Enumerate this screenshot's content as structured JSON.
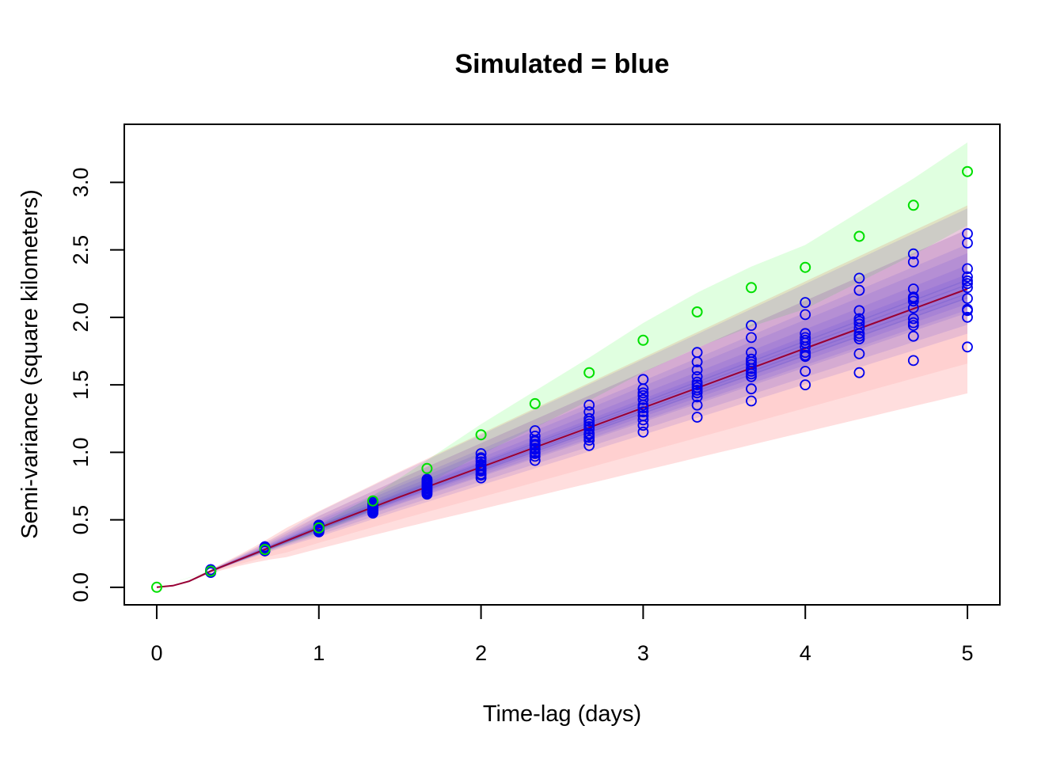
{
  "chart_data": {
    "type": "scatter",
    "title": "Simulated = blue",
    "xlabel": "Time-lag (days)",
    "ylabel": "Semi-variance (square kilometers)",
    "xlim": [
      -0.2,
      5.2
    ],
    "ylim": [
      -0.13,
      3.43
    ],
    "x_ticks": [
      0,
      1,
      2,
      3,
      4,
      5
    ],
    "y_ticks": [
      0.0,
      0.5,
      1.0,
      1.5,
      2.0,
      2.5,
      3.0
    ],
    "x_tick_labels": [
      "0",
      "1",
      "2",
      "3",
      "4",
      "5"
    ],
    "y_tick_labels": [
      "0.0",
      "0.5",
      "1.0",
      "1.5",
      "2.0",
      "2.5",
      "3.0"
    ],
    "grid": false,
    "colors": {
      "observed": "#00e000",
      "simulated": "#0000ee",
      "model_line": "#990033",
      "observed_band": "#00ff00",
      "model_band": "#ff6b6b",
      "simulated_band": "#4b33dd"
    },
    "lag_x": [
      0,
      0.333,
      0.667,
      1,
      1.333,
      1.667,
      2,
      2.333,
      2.667,
      3,
      3.333,
      3.667,
      4,
      4.333,
      4.667,
      5
    ],
    "observed": [
      0.0,
      0.12,
      0.28,
      0.44,
      0.64,
      0.88,
      1.13,
      1.36,
      1.59,
      1.83,
      2.04,
      2.22,
      2.37,
      2.6,
      2.83,
      3.08
    ],
    "simulated": [
      [
        0.12,
        0.12,
        0.13,
        0.12,
        0.13,
        0.11,
        0.12,
        0.13,
        0.12,
        0.12,
        0.13,
        0.12
      ],
      [
        0.27,
        0.29,
        0.28,
        0.3,
        0.27,
        0.28,
        0.29,
        0.28,
        0.3,
        0.27,
        0.29,
        0.28
      ],
      [
        0.42,
        0.44,
        0.46,
        0.43,
        0.45,
        0.41,
        0.44,
        0.46,
        0.43,
        0.42,
        0.45,
        0.44
      ],
      [
        0.55,
        0.58,
        0.6,
        0.63,
        0.56,
        0.59,
        0.61,
        0.57,
        0.62,
        0.58,
        0.6,
        0.57
      ],
      [
        0.69,
        0.72,
        0.75,
        0.78,
        0.8,
        0.71,
        0.74,
        0.77,
        0.73,
        0.76,
        0.79,
        0.7
      ],
      [
        0.81,
        0.84,
        0.87,
        0.9,
        0.93,
        0.96,
        0.99,
        0.83,
        0.86,
        0.91,
        0.88,
        0.95
      ],
      [
        0.94,
        0.97,
        1.0,
        1.03,
        1.06,
        1.09,
        1.12,
        1.16,
        0.99,
        1.05,
        1.02,
        1.08
      ],
      [
        1.05,
        1.09,
        1.13,
        1.17,
        1.21,
        1.25,
        1.3,
        1.35,
        1.11,
        1.19,
        1.23,
        1.14
      ],
      [
        1.15,
        1.2,
        1.27,
        1.33,
        1.39,
        1.42,
        1.47,
        1.54,
        1.24,
        1.3,
        1.35,
        1.44
      ],
      [
        1.26,
        1.35,
        1.41,
        1.44,
        1.48,
        1.52,
        1.56,
        1.61,
        1.67,
        1.74,
        1.46,
        1.5
      ],
      [
        1.38,
        1.47,
        1.56,
        1.58,
        1.62,
        1.65,
        1.69,
        1.74,
        1.85,
        1.94,
        1.6,
        1.67
      ],
      [
        1.5,
        1.6,
        1.71,
        1.74,
        1.78,
        1.81,
        1.85,
        1.88,
        2.02,
        2.11,
        1.72,
        1.83
      ],
      [
        1.59,
        1.73,
        1.84,
        1.86,
        1.92,
        1.97,
        1.99,
        2.05,
        2.2,
        2.29,
        1.88,
        1.95
      ],
      [
        1.68,
        1.86,
        1.94,
        1.99,
        2.07,
        2.12,
        2.14,
        2.21,
        2.41,
        2.47,
        1.96,
        2.15
      ],
      [
        1.78,
        2.0,
        2.06,
        2.14,
        2.22,
        2.25,
        2.3,
        2.36,
        2.55,
        2.62,
        2.05,
        2.27
      ]
    ],
    "model_fit": {
      "x": [
        0,
        0.1,
        0.2,
        0.333,
        0.5,
        0.667,
        1,
        1.5,
        2,
        2.5,
        3,
        3.5,
        4,
        4.5,
        5
      ],
      "y": [
        0.0,
        0.012,
        0.045,
        0.12,
        0.2,
        0.28,
        0.44,
        0.67,
        0.89,
        1.11,
        1.33,
        1.55,
        1.77,
        1.99,
        2.21
      ]
    }
  }
}
